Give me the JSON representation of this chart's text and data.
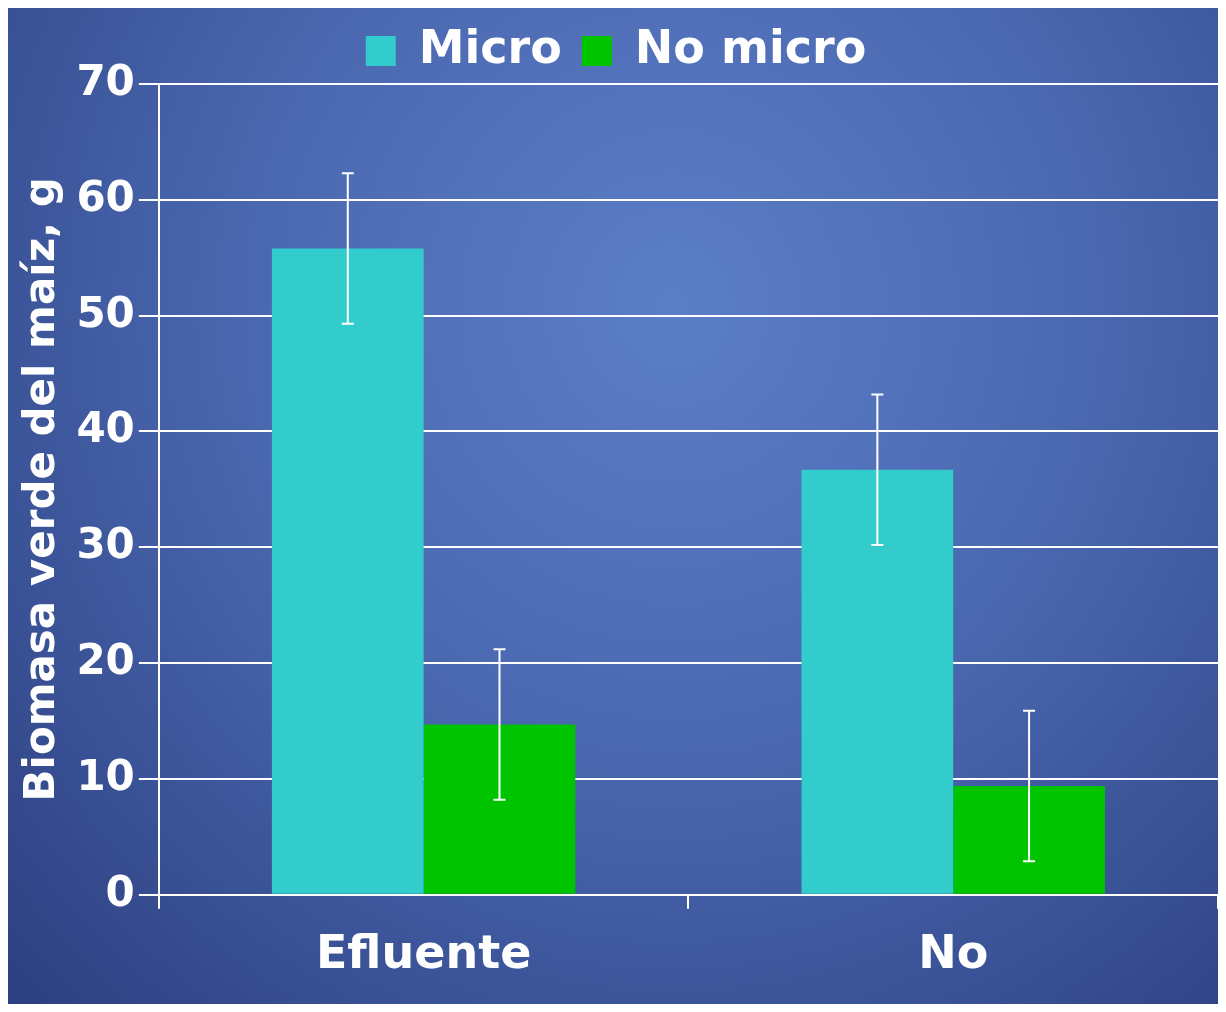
{
  "chart_data": {
    "type": "bar",
    "ylabel": "Biomasa verde del maíz, g",
    "categories": [
      "Efluente",
      "No"
    ],
    "series": [
      {
        "name": "Micro",
        "color": "#33cccc",
        "values": [
          55.8,
          36.7
        ],
        "errors": [
          6.5,
          6.5
        ]
      },
      {
        "name": "No micro",
        "color": "#00c400",
        "values": [
          14.7,
          9.4
        ],
        "errors": [
          6.5,
          6.5
        ]
      }
    ],
    "ylim": [
      0,
      70
    ],
    "yticks": [
      0,
      10,
      20,
      30,
      40,
      50,
      60,
      70
    ],
    "grid": "y",
    "legend": "top"
  }
}
